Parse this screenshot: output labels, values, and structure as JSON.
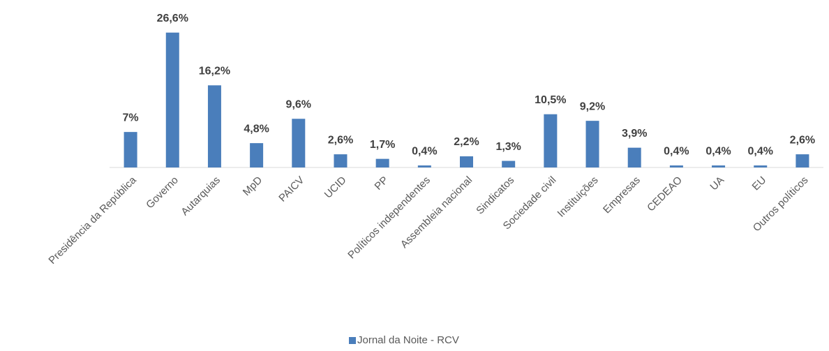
{
  "chart_data": {
    "type": "bar",
    "categories": [
      "Presidência da República",
      "Governo",
      "Autarquias",
      "MpD",
      "PAICV",
      "UCID",
      "PP",
      "Políticos independentes",
      "Assembleia nacional",
      "Sindicatos",
      "Sociedade civil",
      "Instituições",
      "Empresas",
      "CEDEAO",
      "UA",
      "EU",
      "Outros políticos"
    ],
    "series": [
      {
        "name": "Jornal da Noite - RCV",
        "color": "#4a7ebb",
        "values": [
          7,
          26.6,
          16.2,
          4.8,
          9.6,
          2.6,
          1.7,
          0.4,
          2.2,
          1.3,
          10.5,
          9.2,
          3.9,
          0.4,
          0.4,
          0.4,
          2.6
        ],
        "value_labels": [
          "7%",
          "26,6%",
          "16,2%",
          "4,8%",
          "9,6%",
          "2,6%",
          "1,7%",
          "0,4%",
          "2,2%",
          "1,3%",
          "10,5%",
          "9,2%",
          "3,9%",
          "0,4%",
          "0,4%",
          "0,4%",
          "2,6%"
        ]
      }
    ],
    "ylim": [
      0,
      30
    ],
    "legend": "bottom"
  }
}
